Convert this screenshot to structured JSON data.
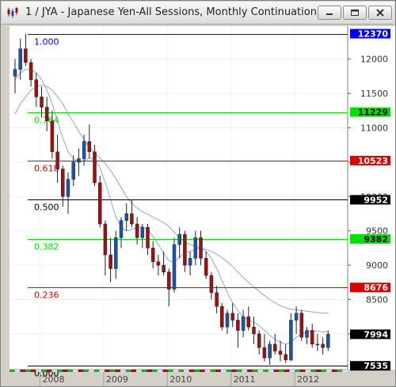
{
  "window": {
    "title": "1 / JYA - Japanese Yen-All Sessions, Monthly Continuation"
  },
  "colors": {
    "up": "#1a56a8",
    "down": "#a01010",
    "ma": "#8aaad8",
    "fib_red": "#dc0000",
    "fib_green": "#00e000",
    "fib_black": "#000000"
  },
  "chart_data": {
    "type": "candlestick",
    "x_labels": [
      "2008",
      "2009",
      "2010",
      "2011",
      "2012"
    ],
    "y_ticks": [
      12000,
      11500,
      11000,
      10500,
      10000,
      9500,
      9000,
      8500,
      8000
    ],
    "ylim": [
      7480,
      12480
    ],
    "price_labels": [
      {
        "value": 12370,
        "text": "12370",
        "bg": "#0000ff",
        "fg": "#ffffff"
      },
      {
        "value": 11229,
        "text": "11229",
        "bg": "#00e000",
        "fg": "#000000"
      },
      {
        "value": 10523,
        "text": "10523",
        "bg": "#dc0000",
        "fg": "#ffffff"
      },
      {
        "value": 9952,
        "text": "9952",
        "bg": "#000000",
        "fg": "#ffffff"
      },
      {
        "value": 9382,
        "text": "9382",
        "bg": "#00e000",
        "fg": "#000000"
      },
      {
        "value": 8676,
        "text": "8676",
        "bg": "#dc0000",
        "fg": "#ffffff"
      },
      {
        "value": 7994,
        "text": "7994",
        "bg": "#000000",
        "fg": "#ffffff"
      },
      {
        "value": 7535,
        "text": "7535",
        "bg": "#000000",
        "fg": "#ffffff"
      }
    ],
    "fib_levels": [
      {
        "label": "1.000",
        "value": 12370,
        "color": "#0000ff",
        "text_color": "#0000ff"
      },
      {
        "label": "0.764",
        "value": 11229,
        "color": "#00e000",
        "text_color": "#00e000"
      },
      {
        "label": "0.618",
        "value": 10523,
        "color": "#dc0000",
        "text_color": "#dc0000"
      },
      {
        "label": "0.500",
        "value": 9952,
        "color": "#000000",
        "text_color": "#000000"
      },
      {
        "label": "0.382",
        "value": 9382,
        "color": "#00e000",
        "text_color": "#00e000"
      },
      {
        "label": "0.236",
        "value": 8676,
        "color": "#dc0000",
        "text_color": "#dc0000"
      },
      {
        "label": "0.000",
        "value": 7535,
        "color": "#000000",
        "text_color": "#000000"
      }
    ],
    "candles": [
      [
        11750,
        12000,
        11500,
        11850
      ],
      [
        11850,
        12300,
        11700,
        12150
      ],
      [
        12150,
        12370,
        11900,
        11950
      ],
      [
        11950,
        12000,
        11600,
        11700
      ],
      [
        11700,
        11800,
        11300,
        11450
      ],
      [
        11450,
        11600,
        11150,
        11300
      ],
      [
        11300,
        11450,
        10950,
        11100
      ],
      [
        11100,
        11250,
        10550,
        10650
      ],
      [
        10650,
        10900,
        10200,
        10400
      ],
      [
        10400,
        10450,
        9850,
        10000
      ],
      [
        10000,
        10350,
        9750,
        10250
      ],
      [
        10250,
        10600,
        10150,
        10500
      ],
      [
        10500,
        10700,
        10300,
        10550
      ],
      [
        10550,
        10900,
        10450,
        10800
      ],
      [
        10800,
        11050,
        10550,
        10650
      ],
      [
        10650,
        10750,
        10150,
        10200
      ],
      [
        10200,
        10300,
        9550,
        9600
      ],
      [
        9600,
        9650,
        8850,
        9150
      ],
      [
        9150,
        9400,
        8750,
        8950
      ],
      [
        8950,
        9500,
        8800,
        9400
      ],
      [
        9400,
        9700,
        9250,
        9650
      ],
      [
        9650,
        9900,
        9500,
        9750
      ],
      [
        9750,
        9950,
        9550,
        9600
      ],
      [
        9600,
        9700,
        9300,
        9400
      ],
      [
        9400,
        9600,
        9250,
        9550
      ],
      [
        9550,
        9600,
        9150,
        9250
      ],
      [
        9250,
        9350,
        8950,
        9050
      ],
      [
        9050,
        9150,
        8850,
        9000
      ],
      [
        9000,
        9200,
        8850,
        8900
      ],
      [
        8900,
        8950,
        8400,
        8650
      ],
      [
        8650,
        9400,
        8600,
        9300
      ],
      [
        9300,
        9550,
        9100,
        9450
      ],
      [
        9450,
        9500,
        8900,
        9000
      ],
      [
        9000,
        9200,
        8850,
        9100
      ],
      [
        9100,
        9500,
        9000,
        9400
      ],
      [
        9400,
        9500,
        9000,
        9100
      ],
      [
        9100,
        9200,
        8800,
        8850
      ],
      [
        8850,
        8900,
        8500,
        8600
      ],
      [
        8600,
        8700,
        8300,
        8400
      ],
      [
        8400,
        8450,
        8050,
        8100
      ],
      [
        8100,
        8350,
        8000,
        8300
      ],
      [
        8300,
        8450,
        8100,
        8200
      ],
      [
        8200,
        8300,
        7800,
        8050
      ],
      [
        8050,
        8350,
        7950,
        8250
      ],
      [
        8250,
        8400,
        8050,
        8100
      ],
      [
        8100,
        8250,
        7850,
        8000
      ],
      [
        8000,
        8050,
        7700,
        7800
      ],
      [
        7800,
        8000,
        7600,
        7650
      ],
      [
        7650,
        7900,
        7550,
        7850
      ],
      [
        7850,
        8000,
        7700,
        7750
      ],
      [
        7750,
        7900,
        7600,
        7700
      ],
      [
        7700,
        7850,
        7580,
        7620
      ],
      [
        7620,
        8300,
        7600,
        8200
      ],
      [
        8200,
        8400,
        8000,
        8300
      ],
      [
        8300,
        8350,
        7900,
        7950
      ],
      [
        7950,
        8100,
        7850,
        8050
      ],
      [
        8050,
        8150,
        7800,
        7850
      ],
      [
        7850,
        8000,
        7750,
        7850
      ],
      [
        7850,
        7950,
        7700,
        7800
      ],
      [
        7800,
        8050,
        7750,
        7994
      ]
    ],
    "ma_fast": [
      11700,
      11800,
      11850,
      11850,
      11800,
      11700,
      11550,
      11350,
      11100,
      10850,
      10650,
      10550,
      10500,
      10520,
      10560,
      10540,
      10420,
      10200,
      9950,
      9700,
      9550,
      9500,
      9520,
      9550,
      9560,
      9520,
      9420,
      9300,
      9180,
      9060,
      9050,
      9120,
      9180,
      9200,
      9230,
      9250,
      9200,
      9100,
      8950,
      8780,
      8600,
      8450,
      8340,
      8250,
      8200,
      8170,
      8120,
      8050,
      7980,
      7920,
      7880,
      7850,
      7880,
      7950,
      8000,
      8030,
      8040,
      8040,
      8030,
      8030
    ],
    "ma_slow": [
      11200,
      11350,
      11450,
      11550,
      11600,
      11620,
      11600,
      11550,
      11450,
      11350,
      11200,
      11080,
      10950,
      10830,
      10720,
      10630,
      10560,
      10480,
      10380,
      10260,
      10130,
      10000,
      9900,
      9830,
      9780,
      9740,
      9700,
      9660,
      9620,
      9560,
      9480,
      9400,
      9340,
      9300,
      9270,
      9250,
      9230,
      9200,
      9160,
      9110,
      9050,
      8980,
      8900,
      8820,
      8750,
      8680,
      8620,
      8560,
      8500,
      8450,
      8410,
      8380,
      8360,
      8350,
      8340,
      8330,
      8320,
      8310,
      8300,
      8300
    ]
  }
}
